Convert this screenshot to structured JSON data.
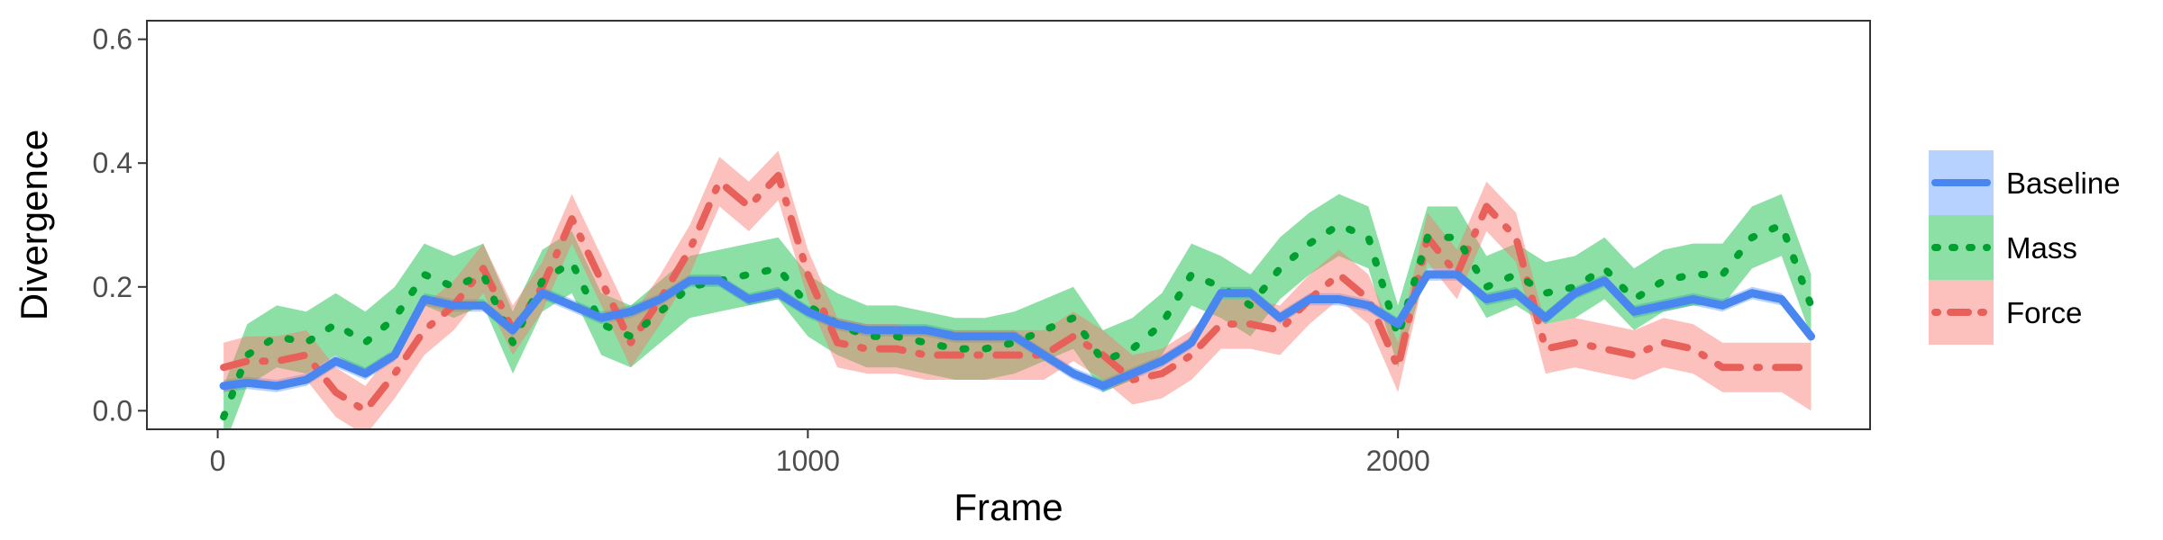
{
  "chart_data": {
    "type": "line",
    "xlabel": "Frame",
    "ylabel": "Divergence",
    "xlim": [
      -120,
      2800
    ],
    "ylim": [
      -0.03,
      0.63
    ],
    "xticks": [
      0,
      1000,
      2000
    ],
    "xtick_labels": [
      "0",
      "1000",
      "2000"
    ],
    "yticks": [
      0.0,
      0.2,
      0.4,
      0.6
    ],
    "ytick_labels": [
      "0.0",
      "0.2",
      "0.4",
      "0.6"
    ],
    "grid": false,
    "legend_position": "right",
    "x": [
      10,
      50,
      100,
      150,
      200,
      250,
      300,
      350,
      400,
      450,
      500,
      550,
      600,
      650,
      700,
      750,
      800,
      850,
      900,
      950,
      1000,
      1050,
      1100,
      1150,
      1200,
      1250,
      1300,
      1350,
      1400,
      1450,
      1500,
      1550,
      1600,
      1650,
      1700,
      1750,
      1800,
      1850,
      1900,
      1950,
      2000,
      2050,
      2100,
      2150,
      2200,
      2250,
      2300,
      2350,
      2400,
      2450,
      2500,
      2550,
      2600,
      2650,
      2700
    ],
    "series": [
      {
        "name": "Baseline",
        "color": "#619CFF",
        "line_color": "#4A86F0",
        "dash": "solid",
        "values": [
          0.04,
          0.045,
          0.04,
          0.05,
          0.08,
          0.06,
          0.09,
          0.18,
          0.17,
          0.17,
          0.13,
          0.19,
          0.17,
          0.15,
          0.16,
          0.18,
          0.21,
          0.21,
          0.18,
          0.19,
          0.16,
          0.14,
          0.13,
          0.13,
          0.13,
          0.12,
          0.12,
          0.12,
          0.09,
          0.06,
          0.04,
          0.06,
          0.08,
          0.11,
          0.19,
          0.19,
          0.15,
          0.18,
          0.18,
          0.17,
          0.14,
          0.22,
          0.22,
          0.18,
          0.19,
          0.15,
          0.19,
          0.21,
          0.16,
          0.17,
          0.18,
          0.17,
          0.19,
          0.18,
          0.12
        ],
        "lower": [
          0.03,
          0.035,
          0.03,
          0.04,
          0.07,
          0.05,
          0.08,
          0.17,
          0.16,
          0.16,
          0.12,
          0.18,
          0.16,
          0.14,
          0.15,
          0.17,
          0.2,
          0.2,
          0.17,
          0.18,
          0.15,
          0.13,
          0.12,
          0.12,
          0.12,
          0.11,
          0.11,
          0.11,
          0.08,
          0.05,
          0.03,
          0.05,
          0.07,
          0.1,
          0.18,
          0.18,
          0.14,
          0.17,
          0.17,
          0.16,
          0.13,
          0.21,
          0.21,
          0.17,
          0.18,
          0.14,
          0.18,
          0.2,
          0.15,
          0.16,
          0.17,
          0.16,
          0.18,
          0.17,
          0.11
        ],
        "upper": [
          0.05,
          0.055,
          0.05,
          0.06,
          0.09,
          0.07,
          0.1,
          0.19,
          0.18,
          0.18,
          0.14,
          0.2,
          0.18,
          0.16,
          0.17,
          0.19,
          0.22,
          0.22,
          0.19,
          0.2,
          0.17,
          0.15,
          0.14,
          0.14,
          0.14,
          0.13,
          0.13,
          0.13,
          0.1,
          0.07,
          0.05,
          0.07,
          0.09,
          0.12,
          0.2,
          0.2,
          0.16,
          0.19,
          0.19,
          0.18,
          0.15,
          0.23,
          0.23,
          0.19,
          0.2,
          0.16,
          0.2,
          0.22,
          0.17,
          0.18,
          0.19,
          0.18,
          0.2,
          0.19,
          0.13
        ]
      },
      {
        "name": "Mass",
        "color": "#00BA38",
        "line_color": "#00A030",
        "dash": "dotted",
        "values": [
          -0.01,
          0.09,
          0.12,
          0.11,
          0.14,
          0.11,
          0.15,
          0.22,
          0.2,
          0.22,
          0.11,
          0.21,
          0.24,
          0.14,
          0.12,
          0.16,
          0.2,
          0.21,
          0.22,
          0.23,
          0.17,
          0.14,
          0.12,
          0.12,
          0.11,
          0.1,
          0.1,
          0.11,
          0.13,
          0.15,
          0.08,
          0.1,
          0.14,
          0.22,
          0.2,
          0.17,
          0.23,
          0.27,
          0.3,
          0.28,
          0.12,
          0.28,
          0.28,
          0.2,
          0.22,
          0.19,
          0.2,
          0.23,
          0.18,
          0.21,
          0.22,
          0.22,
          0.28,
          0.3,
          0.17
        ],
        "lower": [
          -0.06,
          0.04,
          0.07,
          0.06,
          0.09,
          0.06,
          0.1,
          0.17,
          0.15,
          0.17,
          0.06,
          0.16,
          0.19,
          0.09,
          0.07,
          0.11,
          0.15,
          0.16,
          0.17,
          0.18,
          0.12,
          0.09,
          0.07,
          0.07,
          0.06,
          0.05,
          0.05,
          0.06,
          0.08,
          0.1,
          0.03,
          0.05,
          0.09,
          0.17,
          0.15,
          0.12,
          0.18,
          0.22,
          0.25,
          0.23,
          0.07,
          0.23,
          0.23,
          0.15,
          0.17,
          0.14,
          0.15,
          0.18,
          0.13,
          0.16,
          0.17,
          0.17,
          0.23,
          0.25,
          0.12
        ],
        "upper": [
          0.04,
          0.14,
          0.17,
          0.16,
          0.19,
          0.16,
          0.2,
          0.27,
          0.25,
          0.27,
          0.16,
          0.26,
          0.29,
          0.19,
          0.17,
          0.21,
          0.25,
          0.26,
          0.27,
          0.28,
          0.22,
          0.19,
          0.17,
          0.17,
          0.16,
          0.15,
          0.15,
          0.16,
          0.18,
          0.2,
          0.13,
          0.15,
          0.19,
          0.27,
          0.25,
          0.22,
          0.28,
          0.32,
          0.35,
          0.33,
          0.17,
          0.33,
          0.33,
          0.25,
          0.27,
          0.24,
          0.25,
          0.28,
          0.23,
          0.26,
          0.27,
          0.27,
          0.33,
          0.35,
          0.22
        ]
      },
      {
        "name": "Force",
        "color": "#F8766D",
        "line_color": "#E8605A",
        "dash": "dotdash",
        "values": [
          0.07,
          0.08,
          0.08,
          0.09,
          0.03,
          0.0,
          0.06,
          0.13,
          0.17,
          0.23,
          0.13,
          0.2,
          0.31,
          0.21,
          0.11,
          0.18,
          0.26,
          0.37,
          0.33,
          0.38,
          0.22,
          0.11,
          0.1,
          0.1,
          0.09,
          0.09,
          0.09,
          0.09,
          0.09,
          0.12,
          0.09,
          0.05,
          0.06,
          0.09,
          0.14,
          0.14,
          0.13,
          0.18,
          0.22,
          0.18,
          0.07,
          0.28,
          0.22,
          0.33,
          0.28,
          0.1,
          0.11,
          0.1,
          0.09,
          0.11,
          0.1,
          0.07,
          0.07,
          0.07,
          0.07
        ],
        "lower": [
          0.03,
          0.04,
          0.04,
          0.05,
          -0.01,
          -0.04,
          0.02,
          0.09,
          0.13,
          0.19,
          0.09,
          0.16,
          0.27,
          0.17,
          0.07,
          0.14,
          0.22,
          0.33,
          0.29,
          0.34,
          0.18,
          0.07,
          0.06,
          0.06,
          0.05,
          0.05,
          0.05,
          0.05,
          0.05,
          0.08,
          0.05,
          0.01,
          0.02,
          0.05,
          0.1,
          0.1,
          0.09,
          0.14,
          0.18,
          0.14,
          0.03,
          0.24,
          0.18,
          0.29,
          0.24,
          0.06,
          0.07,
          0.06,
          0.05,
          0.07,
          0.06,
          0.03,
          0.03,
          0.03,
          0.0
        ],
        "upper": [
          0.11,
          0.12,
          0.12,
          0.13,
          0.07,
          0.04,
          0.1,
          0.17,
          0.21,
          0.27,
          0.17,
          0.24,
          0.35,
          0.25,
          0.15,
          0.22,
          0.3,
          0.41,
          0.37,
          0.42,
          0.26,
          0.15,
          0.14,
          0.14,
          0.13,
          0.13,
          0.13,
          0.13,
          0.13,
          0.16,
          0.13,
          0.09,
          0.1,
          0.13,
          0.18,
          0.18,
          0.17,
          0.22,
          0.26,
          0.22,
          0.11,
          0.32,
          0.26,
          0.37,
          0.32,
          0.14,
          0.15,
          0.14,
          0.13,
          0.15,
          0.14,
          0.11,
          0.11,
          0.11,
          0.11
        ]
      }
    ]
  }
}
